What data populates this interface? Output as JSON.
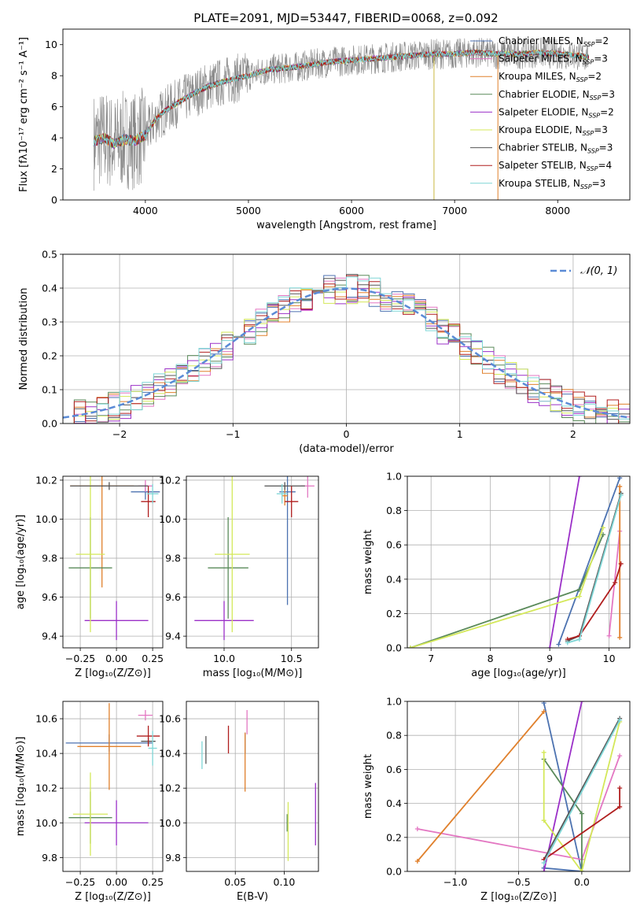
{
  "colors": {
    "chabrier_miles": "#4c72b0",
    "salpeter_miles": "#e377c2",
    "kroupa_miles": "#e0802c",
    "chabrier_elodie": "#5a8a5a",
    "salpeter_elodie": "#9b30c8",
    "kroupa_elodie": "#d4e85a",
    "chabrier_stelib": "#555555",
    "salpeter_stelib": "#b01e1e",
    "kroupa_stelib": "#7ed6d6",
    "normal_curve": "#5b8bd6",
    "grid": "#b0b0b0"
  },
  "chart_data": [
    {
      "id": "spectrum",
      "type": "line",
      "title": "PLATE=2091, MJD=53447, FIBERID=0068, z=0.092",
      "xlabel": "wavelength [Angstrom, rest frame]",
      "ylabel": "Flux [fλ10⁻¹⁷ erg cm⁻² s⁻¹ A⁻¹]",
      "xlim": [
        3200,
        8700
      ],
      "ylim": [
        0,
        11
      ],
      "xticks": [
        4000,
        5000,
        6000,
        7000,
        8000
      ],
      "yticks": [
        0,
        2,
        4,
        6,
        8,
        10
      ],
      "legend": [
        {
          "key": "chabrier_miles",
          "label": "Chabrier MILES, N",
          "sub": "SSP",
          "suffix": "=2"
        },
        {
          "key": "salpeter_miles",
          "label": "Salpeter MILES, N",
          "sub": "SSP",
          "suffix": "=3"
        },
        {
          "key": "kroupa_miles",
          "label": "Kroupa MILES, N",
          "sub": "SSP",
          "suffix": "=2"
        },
        {
          "key": "chabrier_elodie",
          "label": "Chabrier ELODIE, N",
          "sub": "SSP",
          "suffix": "=3"
        },
        {
          "key": "salpeter_elodie",
          "label": "Salpeter ELODIE, N",
          "sub": "SSP",
          "suffix": "=2"
        },
        {
          "key": "kroupa_elodie",
          "label": "Kroupa ELODIE, N",
          "sub": "SSP",
          "suffix": "=3"
        },
        {
          "key": "chabrier_stelib",
          "label": "Chabrier STELIB, N",
          "sub": "SSP",
          "suffix": "=3"
        },
        {
          "key": "salpeter_stelib",
          "label": "Salpeter STELIB, N",
          "sub": "SSP",
          "suffix": "=4"
        },
        {
          "key": "kroupa_stelib",
          "label": "Kroupa STELIB, N",
          "sub": "SSP",
          "suffix": "=3"
        }
      ],
      "continuum": {
        "x": [
          3500,
          3600,
          3700,
          3800,
          3900,
          4000,
          4100,
          4200,
          4400,
          4600,
          4800,
          5000,
          5200,
          5400,
          5600,
          5800,
          6000,
          6200,
          6400,
          6600,
          6800,
          7000,
          7200,
          7400,
          7600,
          7800,
          8000,
          8200,
          8300
        ],
        "y": [
          3.8,
          4.0,
          3.6,
          3.9,
          3.8,
          4.2,
          5.2,
          5.8,
          6.6,
          7.3,
          7.7,
          8.0,
          8.4,
          8.5,
          8.7,
          8.9,
          9.0,
          9.1,
          9.2,
          9.3,
          9.4,
          9.4,
          9.5,
          9.4,
          9.4,
          9.5,
          9.4,
          9.3,
          9.2
        ]
      }
    },
    {
      "id": "residuals",
      "type": "histogram",
      "xlabel": "(data-model)/error",
      "ylabel": "Normed distribution",
      "xlim": [
        -2.5,
        2.5
      ],
      "ylim": [
        0,
        0.5
      ],
      "xticks": [
        -2,
        -1,
        0,
        1,
        2
      ],
      "yticks": [
        0.0,
        0.1,
        0.2,
        0.3,
        0.4,
        0.5
      ],
      "legend": "𝒩(0, 1)"
    },
    {
      "id": "age_vs_Z",
      "type": "errorbar",
      "xlabel": "Z [log₁₀(Z/Z⊙)]",
      "ylabel": "age  [log₁₀(age/yr)]",
      "xlim": [
        -0.37,
        0.32
      ],
      "ylim": [
        9.34,
        10.22
      ],
      "xticks": [
        -0.25,
        0.0,
        0.25
      ],
      "yticks": [
        9.4,
        9.6,
        9.8,
        10.0,
        10.2
      ],
      "points": [
        {
          "key": "chabrier_miles",
          "x": 0.2,
          "y": 10.14,
          "xe": 0.1,
          "ye": 0.04
        },
        {
          "key": "salpeter_miles",
          "x": 0.2,
          "y": 10.17,
          "xe": 0.05,
          "ye": 0.03
        },
        {
          "key": "kroupa_miles",
          "x": -0.1,
          "y": 10.17,
          "xe": 0.22,
          "ye": 0.52
        },
        {
          "key": "chabrier_elodie",
          "x": -0.18,
          "y": 9.75,
          "xe": 0.15,
          "ye": 0.26
        },
        {
          "key": "salpeter_elodie",
          "x": 0.0,
          "y": 9.48,
          "xe": 0.22,
          "ye": 0.1
        },
        {
          "key": "kroupa_elodie",
          "x": -0.18,
          "y": 9.82,
          "xe": 0.1,
          "ye": 0.4
        },
        {
          "key": "chabrier_stelib",
          "x": -0.05,
          "y": 10.17,
          "xe": 0.27,
          "ye": 0.02
        },
        {
          "key": "salpeter_stelib",
          "x": 0.22,
          "y": 10.09,
          "xe": 0.05,
          "ye": 0.08
        },
        {
          "key": "kroupa_stelib",
          "x": 0.25,
          "y": 10.13,
          "xe": 0.04,
          "ye": 0.05
        }
      ]
    },
    {
      "id": "age_vs_mass",
      "type": "errorbar",
      "xlabel": "mass [log₁₀(M/M⊙)]",
      "ylabel": "",
      "xlim": [
        9.72,
        10.7
      ],
      "ylim": [
        9.34,
        10.22
      ],
      "xticks": [
        10.0,
        10.5
      ],
      "yticks": [
        9.4,
        9.6,
        9.8,
        10.0,
        10.2
      ],
      "points": [
        {
          "key": "chabrier_miles",
          "x": 10.47,
          "y": 10.14,
          "xe": 0.06,
          "ye": 0.58
        },
        {
          "key": "salpeter_miles",
          "x": 10.62,
          "y": 10.17,
          "xe": 0.05,
          "ye": 0.06
        },
        {
          "key": "kroupa_miles",
          "x": 10.45,
          "y": 10.12,
          "xe": 0.02,
          "ye": 0.05
        },
        {
          "key": "chabrier_elodie",
          "x": 10.03,
          "y": 9.75,
          "xe": 0.15,
          "ye": 0.26
        },
        {
          "key": "salpeter_elodie",
          "x": 10.0,
          "y": 9.48,
          "xe": 0.22,
          "ye": 0.1
        },
        {
          "key": "kroupa_elodie",
          "x": 10.06,
          "y": 9.82,
          "xe": 0.13,
          "ye": 0.4
        },
        {
          "key": "chabrier_stelib",
          "x": 10.45,
          "y": 10.17,
          "xe": 0.15,
          "ye": 0.02
        },
        {
          "key": "salpeter_stelib",
          "x": 10.5,
          "y": 10.09,
          "xe": 0.05,
          "ye": 0.08
        },
        {
          "key": "kroupa_stelib",
          "x": 10.43,
          "y": 10.13,
          "xe": 0.04,
          "ye": 0.05
        }
      ]
    },
    {
      "id": "massweight_vs_age",
      "type": "line",
      "xlabel": "age  [log₁₀(age/yr)]",
      "ylabel": "mass weight",
      "xlim": [
        6.6,
        10.35
      ],
      "ylim": [
        0,
        1
      ],
      "xticks": [
        7,
        8,
        9,
        10
      ],
      "yticks": [
        0.0,
        0.2,
        0.4,
        0.6,
        0.8,
        1.0
      ],
      "series": [
        {
          "key": "chabrier_miles",
          "x": [
            9.15,
            10.18
          ],
          "y": [
            0.02,
            0.99
          ]
        },
        {
          "key": "salpeter_miles",
          "x": [
            10.0,
            10.18
          ],
          "y": [
            0.07,
            0.68
          ]
        },
        {
          "key": "kroupa_miles",
          "x": [
            10.18,
            10.18
          ],
          "y": [
            0.06,
            0.94
          ]
        },
        {
          "key": "chabrier_elodie",
          "x": [
            6.65,
            9.5,
            9.9
          ],
          "y": [
            0.0,
            0.34,
            0.66
          ]
        },
        {
          "key": "salpeter_elodie",
          "x": [
            9.0,
            9.5
          ],
          "y": [
            0.0,
            1.0
          ]
        },
        {
          "key": "kroupa_elodie",
          "x": [
            6.65,
            9.5,
            9.9
          ],
          "y": [
            0.0,
            0.3,
            0.7
          ]
        },
        {
          "key": "chabrier_stelib",
          "x": [
            9.3,
            9.5,
            10.2
          ],
          "y": [
            0.04,
            0.07,
            0.9
          ]
        },
        {
          "key": "salpeter_stelib",
          "x": [
            9.3,
            9.5,
            10.1,
            10.2
          ],
          "y": [
            0.05,
            0.07,
            0.38,
            0.49
          ]
        },
        {
          "key": "kroupa_stelib",
          "x": [
            9.3,
            9.5,
            10.2
          ],
          "y": [
            0.03,
            0.05,
            0.89
          ]
        }
      ]
    },
    {
      "id": "mass_vs_Z",
      "type": "errorbar",
      "xlabel": "Z [log₁₀(Z/Z⊙)]",
      "ylabel": "mass [log₁₀(M/M⊙)]",
      "xlim": [
        -0.37,
        0.32
      ],
      "ylim": [
        9.72,
        10.7
      ],
      "xticks": [
        -0.25,
        0.0,
        0.25
      ],
      "yticks": [
        9.8,
        10.0,
        10.2,
        10.4,
        10.6
      ],
      "points": [
        {
          "key": "chabrier_miles",
          "x": -0.05,
          "y": 10.46,
          "xe": 0.3,
          "ye": 0.05
        },
        {
          "key": "salpeter_miles",
          "x": 0.2,
          "y": 10.62,
          "xe": 0.05,
          "ye": 0.03
        },
        {
          "key": "kroupa_miles",
          "x": -0.05,
          "y": 10.44,
          "xe": 0.22,
          "ye": 0.25
        },
        {
          "key": "chabrier_elodie",
          "x": -0.18,
          "y": 10.03,
          "xe": 0.15,
          "ye": 0.15
        },
        {
          "key": "salpeter_elodie",
          "x": 0.0,
          "y": 10.0,
          "xe": 0.22,
          "ye": 0.13
        },
        {
          "key": "kroupa_elodie",
          "x": -0.18,
          "y": 10.05,
          "xe": 0.12,
          "ye": 0.24
        },
        {
          "key": "chabrier_stelib",
          "x": 0.22,
          "y": 10.47,
          "xe": 0.05,
          "ye": 0.02
        },
        {
          "key": "salpeter_stelib",
          "x": 0.22,
          "y": 10.5,
          "xe": 0.08,
          "ye": 0.06
        },
        {
          "key": "kroupa_stelib",
          "x": 0.25,
          "y": 10.43,
          "xe": 0.03,
          "ye": 0.1
        }
      ]
    },
    {
      "id": "mass_vs_ebv",
      "type": "errorbar",
      "xlabel": "E(B-V)",
      "ylabel": "",
      "xlim": [
        0.0,
        0.135
      ],
      "ylim": [
        9.72,
        10.7
      ],
      "xticks": [
        0.05,
        0.1
      ],
      "yticks": [
        9.8,
        10.0,
        10.2,
        10.4,
        10.6
      ],
      "points": [
        {
          "key": "chabrier_miles",
          "x": 0.06,
          "y": 10.46,
          "xe": 0.0,
          "ye": 0.06
        },
        {
          "key": "salpeter_miles",
          "x": 0.062,
          "y": 10.58,
          "xe": 0.0,
          "ye": 0.07
        },
        {
          "key": "kroupa_miles",
          "x": 0.06,
          "y": 10.35,
          "xe": 0.0,
          "ye": 0.17
        },
        {
          "key": "chabrier_elodie",
          "x": 0.103,
          "y": 10.0,
          "xe": 0.0,
          "ye": 0.05
        },
        {
          "key": "salpeter_elodie",
          "x": 0.132,
          "y": 10.05,
          "xe": 0.0,
          "ye": 0.18
        },
        {
          "key": "kroupa_elodie",
          "x": 0.104,
          "y": 9.95,
          "xe": 0.0,
          "ye": 0.17
        },
        {
          "key": "chabrier_stelib",
          "x": 0.02,
          "y": 10.42,
          "xe": 0.0,
          "ye": 0.08
        },
        {
          "key": "salpeter_stelib",
          "x": 0.043,
          "y": 10.48,
          "xe": 0.0,
          "ye": 0.08
        },
        {
          "key": "kroupa_stelib",
          "x": 0.016,
          "y": 10.39,
          "xe": 0.0,
          "ye": 0.08
        }
      ]
    },
    {
      "id": "massweight_vs_Z",
      "type": "line",
      "xlabel": "Z [log₁₀(Z/Z⊙)]",
      "ylabel": "mass weight",
      "xlim": [
        -1.38,
        0.38
      ],
      "ylim": [
        0,
        1
      ],
      "xticks": [
        -1.0,
        -0.5,
        0.0
      ],
      "yticks": [
        0.0,
        0.2,
        0.4,
        0.6,
        0.8,
        1.0
      ],
      "series": [
        {
          "key": "chabrier_miles",
          "x": [
            -0.3,
            0.0,
            -0.3
          ],
          "y": [
            0.99,
            0.0,
            0.02
          ]
        },
        {
          "key": "salpeter_miles",
          "x": [
            -1.3,
            0.0,
            0.3
          ],
          "y": [
            0.25,
            0.07,
            0.68
          ]
        },
        {
          "key": "kroupa_miles",
          "x": [
            -1.3,
            -0.3
          ],
          "y": [
            0.06,
            0.94
          ]
        },
        {
          "key": "chabrier_elodie",
          "x": [
            -0.3,
            0.0,
            0.0
          ],
          "y": [
            0.66,
            0.34,
            0.0
          ]
        },
        {
          "key": "salpeter_elodie",
          "x": [
            -0.3,
            0.0
          ],
          "y": [
            0.0,
            1.0
          ]
        },
        {
          "key": "kroupa_elodie",
          "x": [
            -0.3,
            -0.3,
            0.0,
            0.3
          ],
          "y": [
            0.7,
            0.3,
            0.0,
            0.88
          ]
        },
        {
          "key": "chabrier_stelib",
          "x": [
            -0.3,
            0.3
          ],
          "y": [
            0.07,
            0.9
          ]
        },
        {
          "key": "salpeter_stelib",
          "x": [
            -0.3,
            0.3,
            0.3
          ],
          "y": [
            0.07,
            0.38,
            0.49
          ]
        },
        {
          "key": "kroupa_stelib",
          "x": [
            -0.3,
            0.3
          ],
          "y": [
            0.05,
            0.89
          ]
        }
      ]
    }
  ]
}
